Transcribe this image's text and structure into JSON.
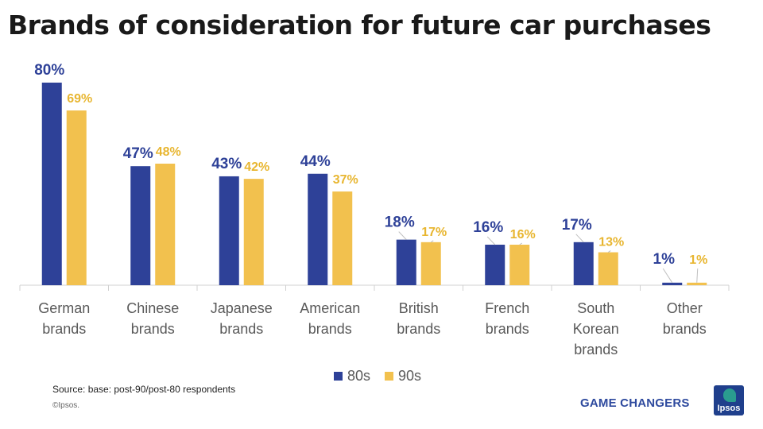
{
  "title": "Brands of consideration for future car purchases",
  "source": "Source: base: post-90/post-80  respondents",
  "copyright": "©Ipsos.",
  "brand_text": "GAME CHANGERS",
  "logo_text": "Ipsos",
  "colors": {
    "series_80s": "#2e4198",
    "series_90s": "#f2c14e",
    "axis": "#d0d0d0",
    "category_text": "#595959"
  },
  "chart_data": {
    "type": "bar",
    "title": "Brands of consideration for future car purchases",
    "categories": [
      [
        "German",
        "brands"
      ],
      [
        "Chinese",
        "brands"
      ],
      [
        "Japanese",
        "brands"
      ],
      [
        "American",
        "brands"
      ],
      [
        "British",
        "brands"
      ],
      [
        "French",
        "brands"
      ],
      [
        "South",
        "Korean",
        "brands"
      ],
      [
        "Other",
        "brands"
      ]
    ],
    "series": [
      {
        "name": "80s",
        "values": [
          80,
          47,
          43,
          44,
          18,
          16,
          17,
          1
        ],
        "labels": [
          "80%",
          "47%",
          "43%",
          "44%",
          "18%",
          "16%",
          "17%",
          "1%"
        ]
      },
      {
        "name": "90s",
        "values": [
          69,
          48,
          42,
          37,
          17,
          16,
          13,
          1
        ],
        "labels": [
          "69%",
          "48%",
          "42%",
          "37%",
          "17%",
          "16%",
          "13%",
          "1%"
        ]
      }
    ],
    "ylim": [
      0,
      80
    ],
    "legend_position": "bottom",
    "grid": false
  }
}
